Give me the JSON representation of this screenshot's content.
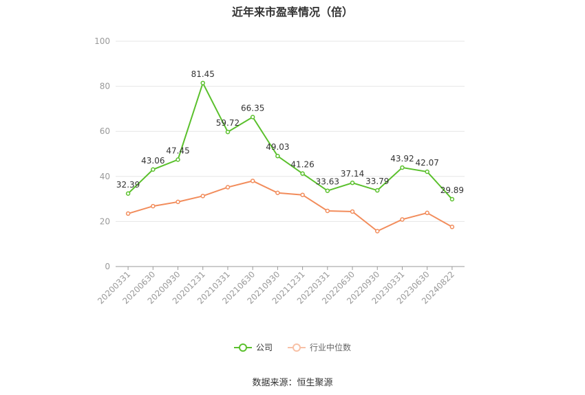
{
  "chart_data": {
    "type": "line",
    "title": "近年来市盈率情况（倍）",
    "x": [
      "20200331",
      "20200630",
      "20200930",
      "20201231",
      "20210331",
      "20210630",
      "20210930",
      "20211231",
      "20220331",
      "20220630",
      "20220930",
      "20230331",
      "20230630",
      "20240822"
    ],
    "series": [
      {
        "name": "公司",
        "color": "#5ac02c",
        "values": [
          32.39,
          43.06,
          47.45,
          81.45,
          59.72,
          66.35,
          49.03,
          41.26,
          33.63,
          37.14,
          33.79,
          43.92,
          42.07,
          29.89
        ],
        "labels": [
          "32.39",
          "43.06",
          "47.45",
          "81.45",
          "59.72",
          "66.35",
          "49.03",
          "41.26",
          "33.63",
          "37.14",
          "33.79",
          "43.92",
          "42.07",
          "29.89"
        ]
      },
      {
        "name": "行业中位数",
        "color": "#f28c5b",
        "values": [
          23.5,
          26.8,
          28.7,
          31.3,
          35.2,
          38.0,
          32.7,
          31.8,
          24.7,
          24.4,
          15.7,
          20.9,
          23.8,
          17.6
        ]
      }
    ],
    "ylim": [
      0,
      100
    ],
    "yticks": [
      "0",
      "20",
      "40",
      "60",
      "80",
      "100"
    ],
    "grid": true,
    "legend_position": "bottom"
  },
  "source": "数据来源：恒生聚源"
}
